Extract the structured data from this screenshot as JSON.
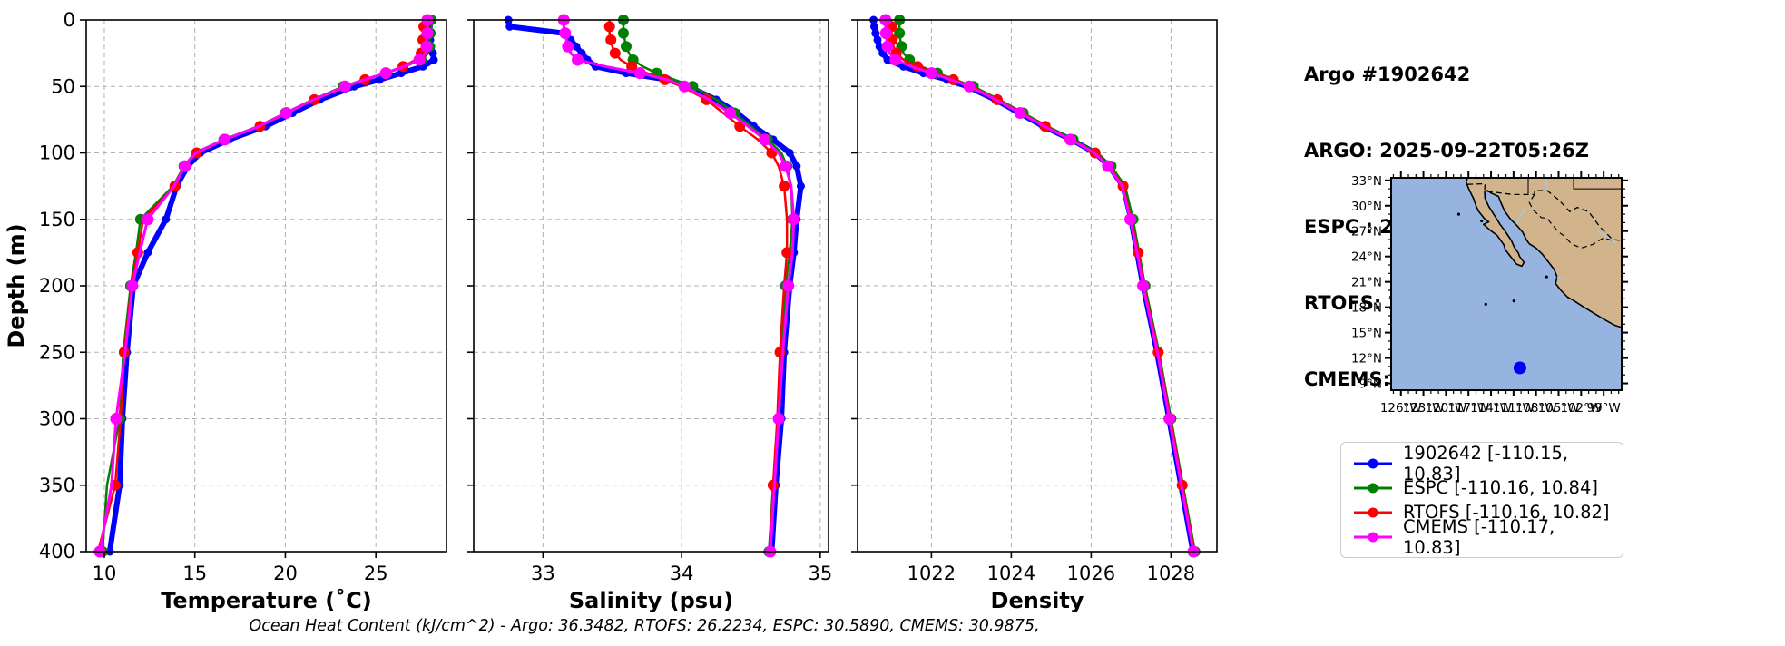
{
  "header": {
    "title": "Argo #1902642",
    "lines": [
      "ARGO: 2025-09-22T05:26Z",
      "ESPC : 2025-09-22T06:00Z",
      "RTOFS: 2025-09-22T00:00Z",
      "CMEMS: 2025-09-22T06:00Z"
    ]
  },
  "footer": {
    "ohc_text": "Ocean Heat Content (kJ/cm^2) - Argo: 36.3482,  RTOFS: 26.2234,  ESPC: 30.5890,  CMEMS: 30.9875,"
  },
  "legend": {
    "entries": [
      {
        "label": "1902642 [-110.15, 10.83]",
        "color": "#0000ff"
      },
      {
        "label": "ESPC [-110.16, 10.84]",
        "color": "#008000"
      },
      {
        "label": "RTOFS [-110.16, 10.82]",
        "color": "#ff0000"
      },
      {
        "label": "CMEMS [-110.17, 10.83]",
        "color": "#ff00ff"
      }
    ]
  },
  "map": {
    "ocean_color": "#97b4e0",
    "land_color": "#d2b48c",
    "river_color": "#a6c8e8",
    "marker": {
      "lon": -110.15,
      "lat": 10.83,
      "color": "#0000ff"
    },
    "lat_ticks": [
      33,
      30,
      27,
      24,
      21,
      18,
      15,
      12,
      9
    ],
    "lat_tick_labels": [
      "33°N",
      "30°N",
      "27°N",
      "24°N",
      "21°N",
      "18°N",
      "15°N",
      "12°N",
      "9°N"
    ],
    "lon_ticks": [
      -126,
      -123,
      -120,
      -117,
      -114,
      -111,
      -108,
      -105,
      -102,
      -99
    ],
    "lon_tick_labels": [
      "126°W",
      "123°W",
      "120°W",
      "117°W",
      "114°W",
      "111°W",
      "108°W",
      "105°W",
      "102°W",
      "99°W"
    ],
    "lon_range": [
      -127.3,
      -96.6
    ],
    "lat_range": [
      8.2,
      33.3
    ]
  },
  "chart_data": [
    {
      "type": "line",
      "xlabel": "Temperature (˚C)",
      "ylabel": "Depth (m)",
      "xlim": [
        9.0,
        28.9
      ],
      "ylim": [
        400,
        0
      ],
      "xticks": [
        10,
        15,
        20,
        25
      ],
      "yticks": [
        0,
        50,
        100,
        150,
        200,
        250,
        300,
        350,
        400
      ],
      "grid": true,
      "depths": [
        0,
        5,
        10,
        15,
        20,
        25,
        30,
        35,
        40,
        45,
        50,
        60,
        70,
        80,
        90,
        100,
        110,
        125,
        150,
        175,
        200,
        250,
        300,
        350,
        400
      ],
      "series": [
        {
          "name": "1902642",
          "color": "#0000ff",
          "values": [
            27.9,
            27.92,
            27.95,
            28.0,
            28.05,
            28.15,
            28.2,
            27.6,
            26.4,
            25.2,
            23.8,
            21.9,
            20.4,
            18.9,
            16.9,
            15.3,
            14.6,
            14.0,
            13.4,
            12.4,
            11.6,
            11.25,
            11.0,
            10.85,
            10.3
          ]
        },
        {
          "name": "ESPC",
          "color": "#008000",
          "values": [
            28.05,
            28.05,
            28.0,
            28.0,
            27.95,
            27.9,
            27.5,
            26.6,
            25.6,
            24.3,
            23.2,
            21.5,
            20.0,
            18.5,
            16.6,
            15.0,
            14.4,
            13.8,
            12.0,
            11.75,
            11.45,
            11.05,
            10.85,
            10.15,
            9.9
          ]
        },
        {
          "name": "RTOFS",
          "color": "#ff0000",
          "values": [
            27.65,
            27.65,
            27.65,
            27.6,
            27.55,
            27.5,
            27.2,
            26.5,
            25.5,
            24.4,
            23.4,
            21.6,
            20.1,
            18.6,
            16.7,
            15.1,
            14.45,
            13.9,
            12.15,
            11.85,
            11.5,
            11.1,
            10.9,
            10.6,
            9.65
          ]
        },
        {
          "name": "CMEMS",
          "color": "#ff00ff",
          "values": [
            27.85,
            27.85,
            27.85,
            27.8,
            27.8,
            27.75,
            27.4,
            26.55,
            25.55,
            24.35,
            23.3,
            21.55,
            20.05,
            18.55,
            16.65,
            15.05,
            14.45,
            13.85,
            12.4,
            11.95,
            11.55,
            11.15,
            10.65,
            10.4,
            9.75
          ]
        }
      ]
    },
    {
      "type": "line",
      "xlabel": "Salinity (psu)",
      "ylabel": "Depth (m)",
      "xlim": [
        32.5,
        35.06
      ],
      "ylim": [
        400,
        0
      ],
      "xticks": [
        33,
        34,
        35
      ],
      "yticks": [
        0,
        50,
        100,
        150,
        200,
        250,
        300,
        350,
        400
      ],
      "grid": true,
      "depths": [
        0,
        5,
        10,
        15,
        20,
        25,
        30,
        35,
        40,
        45,
        50,
        60,
        70,
        80,
        90,
        100,
        110,
        125,
        150,
        175,
        200,
        250,
        300,
        350,
        400
      ],
      "series": [
        {
          "name": "1902642",
          "color": "#0000ff",
          "values": [
            32.75,
            32.76,
            33.15,
            33.2,
            33.24,
            33.28,
            33.32,
            33.38,
            33.6,
            33.9,
            34.05,
            34.25,
            34.4,
            34.52,
            34.66,
            34.78,
            34.83,
            34.86,
            34.83,
            34.81,
            34.78,
            34.74,
            34.72,
            34.68,
            34.65
          ]
        },
        {
          "name": "ESPC",
          "color": "#008000",
          "values": [
            33.58,
            33.58,
            33.58,
            33.59,
            33.6,
            33.62,
            33.65,
            33.72,
            33.82,
            33.95,
            34.08,
            34.25,
            34.38,
            34.5,
            34.62,
            34.72,
            34.76,
            34.79,
            34.8,
            34.78,
            34.75,
            34.72,
            34.7,
            34.66,
            34.63
          ]
        },
        {
          "name": "RTOFS",
          "color": "#ff0000",
          "values": [
            33.48,
            33.48,
            33.48,
            33.49,
            33.5,
            33.52,
            33.56,
            33.64,
            33.75,
            33.88,
            34.0,
            34.18,
            34.3,
            34.42,
            34.55,
            34.65,
            34.7,
            34.74,
            34.76,
            34.76,
            34.74,
            34.71,
            34.69,
            34.66,
            34.64
          ]
        },
        {
          "name": "CMEMS",
          "color": "#ff00ff",
          "values": [
            33.15,
            33.15,
            33.16,
            33.17,
            33.18,
            33.2,
            33.25,
            33.45,
            33.7,
            33.9,
            34.02,
            34.2,
            34.35,
            34.48,
            34.6,
            34.7,
            34.75,
            34.79,
            34.81,
            34.8,
            34.77,
            34.73,
            34.7,
            34.67,
            34.64
          ]
        }
      ]
    },
    {
      "type": "line",
      "xlabel": "Density",
      "ylabel": "Depth (m)",
      "xlim": [
        1020.15,
        1029.15
      ],
      "ylim": [
        400,
        0
      ],
      "xticks": [
        1022,
        1024,
        1026,
        1028
      ],
      "yticks": [
        0,
        50,
        100,
        150,
        200,
        250,
        300,
        350,
        400
      ],
      "grid": true,
      "depths": [
        0,
        5,
        10,
        15,
        20,
        25,
        30,
        35,
        40,
        45,
        50,
        60,
        70,
        80,
        90,
        100,
        110,
        125,
        150,
        175,
        200,
        250,
        300,
        350,
        400
      ],
      "series": [
        {
          "name": "1902642",
          "color": "#0000ff",
          "values": [
            1020.55,
            1020.57,
            1020.6,
            1020.65,
            1020.7,
            1020.78,
            1020.9,
            1021.3,
            1021.8,
            1022.4,
            1022.9,
            1023.6,
            1024.2,
            1024.8,
            1025.5,
            1026.1,
            1026.45,
            1026.8,
            1027.0,
            1027.15,
            1027.3,
            1027.65,
            1027.95,
            1028.25,
            1028.55
          ]
        },
        {
          "name": "ESPC",
          "color": "#008000",
          "values": [
            1021.2,
            1021.2,
            1021.2,
            1021.22,
            1021.25,
            1021.3,
            1021.45,
            1021.75,
            1022.15,
            1022.6,
            1023.05,
            1023.7,
            1024.3,
            1024.9,
            1025.55,
            1026.15,
            1026.5,
            1026.85,
            1027.05,
            1027.2,
            1027.35,
            1027.7,
            1028.0,
            1028.3,
            1028.6
          ]
        },
        {
          "name": "RTOFS",
          "color": "#ff0000",
          "values": [
            1021.0,
            1021.0,
            1021.0,
            1021.02,
            1021.05,
            1021.12,
            1021.3,
            1021.65,
            1022.1,
            1022.55,
            1023.0,
            1023.65,
            1024.25,
            1024.85,
            1025.5,
            1026.1,
            1026.45,
            1026.8,
            1027.0,
            1027.18,
            1027.32,
            1027.68,
            1027.98,
            1028.28,
            1028.58
          ]
        },
        {
          "name": "CMEMS",
          "color": "#ff00ff",
          "values": [
            1020.85,
            1020.85,
            1020.86,
            1020.88,
            1020.9,
            1020.95,
            1021.1,
            1021.5,
            1022.0,
            1022.5,
            1022.95,
            1023.62,
            1024.22,
            1024.82,
            1025.48,
            1026.08,
            1026.42,
            1026.78,
            1026.98,
            1027.15,
            1027.3,
            1027.66,
            1027.96,
            1028.26,
            1028.56
          ]
        }
      ]
    }
  ]
}
